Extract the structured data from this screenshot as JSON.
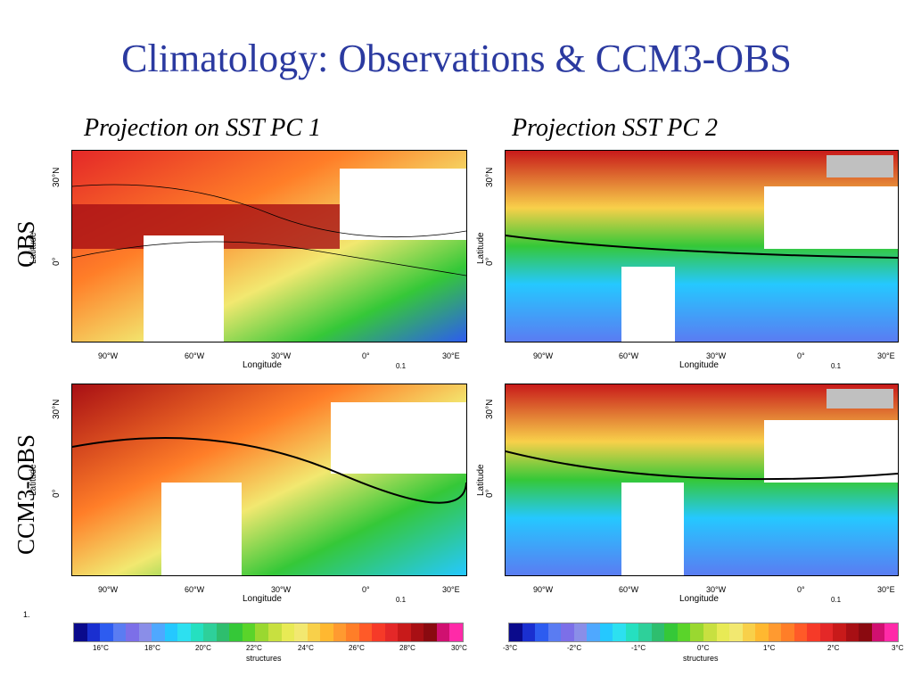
{
  "title": "Climatology: Observations & CCM3-OBS",
  "columns": [
    "Projection on SST PC 1",
    "Projection SST PC 2"
  ],
  "rows": [
    "OBS",
    "CCM3-OBS"
  ],
  "axis": {
    "xlabel": "Longitude",
    "ylabel": "Latitude",
    "xticks": [
      "90°W",
      "60°W",
      "30°W",
      "0°",
      "30°E"
    ],
    "yticks": [
      "30°N",
      "0°"
    ],
    "ref_vector": "0.1"
  },
  "footnote": "1.",
  "colorbars": [
    {
      "title": "structures",
      "ticks": [
        "16°C",
        "18°C",
        "20°C",
        "22°C",
        "24°C",
        "26°C",
        "28°C",
        "30°C"
      ],
      "colors": [
        "#0a0a8c",
        "#1a2fd0",
        "#2d5cf0",
        "#5a7cf2",
        "#7c6fe8",
        "#8a8ee8",
        "#4fa8ff",
        "#25c8ff",
        "#2de0f0",
        "#25e0c0",
        "#2ed09a",
        "#2ebe6e",
        "#35c838",
        "#5ad42a",
        "#9ad830",
        "#c8e040",
        "#e8ea55",
        "#f2e870",
        "#f8d04a",
        "#ffb830",
        "#ff9a30",
        "#ff7e28",
        "#ff5a28",
        "#f63a28",
        "#e42828",
        "#c81a1a",
        "#a80f14",
        "#8a0a10",
        "#d01070",
        "#ff2aa8"
      ]
    },
    {
      "title": "structures",
      "ticks": [
        "-3°C",
        "-2°C",
        "-1°C",
        "0°C",
        "1°C",
        "2°C",
        "3°C"
      ],
      "colors": [
        "#0a0a8c",
        "#1a2fd0",
        "#2d5cf0",
        "#5a7cf2",
        "#7c6fe8",
        "#8a8ee8",
        "#4fa8ff",
        "#25c8ff",
        "#2de0f0",
        "#25e0c0",
        "#2ed09a",
        "#2ebe6e",
        "#35c838",
        "#5ad42a",
        "#9ad830",
        "#c8e040",
        "#e8ea55",
        "#f2e870",
        "#f8d04a",
        "#ffb830",
        "#ff9a30",
        "#ff7e28",
        "#ff5a28",
        "#f63a28",
        "#e42828",
        "#c81a1a",
        "#a80f14",
        "#8a0a10",
        "#d01070",
        "#ff2aa8"
      ]
    }
  ]
}
